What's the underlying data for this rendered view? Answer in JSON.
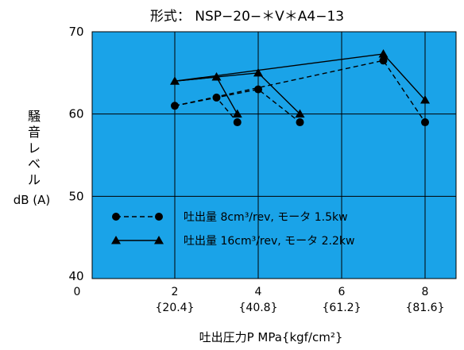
{
  "chart_data": {
    "type": "line",
    "title": "形式： NSP−20−＊V＊A4−13",
    "ylabel_chars": [
      "騒",
      "音",
      "レ",
      "ベ",
      "ル"
    ],
    "ylabel_unit": "dB (A)",
    "xlabel": "吐出圧力P  MPa{kgf/cm²}",
    "xlim": [
      0,
      9
    ],
    "ylim": [
      40,
      70
    ],
    "grid": true,
    "legend_placement": "bottom-left",
    "plot_background": "#1aa3e8",
    "x_origin_label": "0",
    "x_ticks": [
      {
        "value": 2,
        "label": "2",
        "sublabel": "{20.4}"
      },
      {
        "value": 4,
        "label": "4",
        "sublabel": "{40.8}"
      },
      {
        "value": 6,
        "label": "6",
        "sublabel": "{61.2}"
      },
      {
        "value": 8,
        "label": "8",
        "sublabel": "{81.6}"
      }
    ],
    "y_ticks": [
      {
        "value": 40,
        "label": "40"
      },
      {
        "value": 50,
        "label": "50"
      },
      {
        "value": 60,
        "label": "60"
      },
      {
        "value": 70,
        "label": "70"
      }
    ],
    "series": [
      {
        "name": "吐出量 8cm³/rev, モータ 1.5kw",
        "marker": "circle",
        "line_style": "dashed",
        "segments": [
          [
            [
              2,
              61
            ],
            [
              3,
              62
            ],
            [
              3.5,
              59
            ]
          ],
          [
            [
              2,
              61
            ],
            [
              4,
              63
            ],
            [
              5,
              59
            ]
          ],
          [
            [
              2,
              61
            ],
            [
              7,
              66.5
            ],
            [
              8,
              59
            ]
          ]
        ]
      },
      {
        "name": "吐出量 16cm³/rev, モータ 2.2kw",
        "marker": "triangle",
        "line_style": "solid",
        "segments": [
          [
            [
              2,
              64
            ],
            [
              3,
              64.5
            ],
            [
              3.5,
              60
            ]
          ],
          [
            [
              2,
              64
            ],
            [
              4,
              65
            ],
            [
              5,
              60
            ]
          ],
          [
            [
              2,
              64
            ],
            [
              7,
              67.3
            ],
            [
              8,
              61.7
            ]
          ]
        ]
      }
    ]
  }
}
